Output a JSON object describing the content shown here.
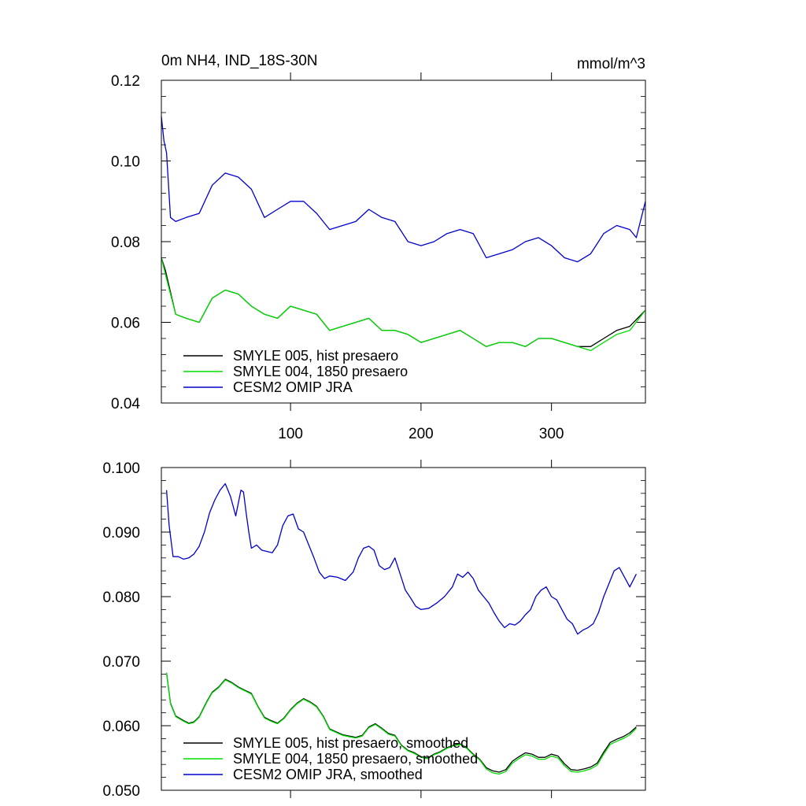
{
  "chart_data": [
    {
      "type": "line",
      "title": "0m NH4, IND_18S-30N",
      "units": "mmol/m^3",
      "xlim": [
        1,
        372
      ],
      "ylim": [
        0.04,
        0.12
      ],
      "yticks": [
        {
          "value": 0.04,
          "label": "0.04"
        },
        {
          "value": 0.06,
          "label": "0.06"
        },
        {
          "value": 0.08,
          "label": "0.08"
        },
        {
          "value": 0.1,
          "label": "0.10"
        },
        {
          "value": 0.12,
          "label": "0.12"
        }
      ],
      "xticks": [
        {
          "value": 100,
          "label": "100"
        },
        {
          "value": 200,
          "label": "200"
        },
        {
          "value": 300,
          "label": "300"
        }
      ],
      "legend_position": "bottom-left",
      "series": [
        {
          "name": "SMYLE 005, hist presaero",
          "color": "#000000",
          "x": [
            1,
            4,
            12,
            20,
            30,
            40,
            50,
            60,
            70,
            80,
            90,
            100,
            110,
            120,
            130,
            140,
            150,
            160,
            170,
            180,
            190,
            200,
            210,
            220,
            230,
            240,
            250,
            260,
            270,
            280,
            290,
            300,
            310,
            320,
            330,
            340,
            350,
            360,
            372
          ],
          "y": [
            0.076,
            0.073,
            0.062,
            0.061,
            0.06,
            0.066,
            0.068,
            0.067,
            0.064,
            0.062,
            0.061,
            0.064,
            0.063,
            0.062,
            0.058,
            0.059,
            0.06,
            0.061,
            0.058,
            0.058,
            0.057,
            0.055,
            0.056,
            0.057,
            0.058,
            0.056,
            0.054,
            0.055,
            0.055,
            0.054,
            0.056,
            0.056,
            0.055,
            0.054,
            0.054,
            0.056,
            0.058,
            0.059,
            0.063
          ]
        },
        {
          "name": "SMYLE 004, 1850 presaero",
          "color": "#00dd00",
          "x": [
            1,
            4,
            12,
            20,
            30,
            40,
            50,
            60,
            70,
            80,
            90,
            100,
            110,
            120,
            130,
            140,
            150,
            160,
            170,
            180,
            190,
            200,
            210,
            220,
            230,
            240,
            250,
            260,
            270,
            280,
            290,
            300,
            310,
            320,
            330,
            340,
            350,
            360,
            372
          ],
          "y": [
            0.076,
            0.072,
            0.062,
            0.061,
            0.06,
            0.066,
            0.068,
            0.067,
            0.064,
            0.062,
            0.061,
            0.064,
            0.063,
            0.062,
            0.058,
            0.059,
            0.06,
            0.061,
            0.058,
            0.058,
            0.057,
            0.055,
            0.056,
            0.057,
            0.058,
            0.056,
            0.054,
            0.055,
            0.055,
            0.054,
            0.056,
            0.056,
            0.055,
            0.054,
            0.053,
            0.055,
            0.057,
            0.058,
            0.063
          ]
        },
        {
          "name": "CESM2 OMIP JRA",
          "color": "#0000cc",
          "x": [
            1,
            3,
            5,
            8,
            12,
            20,
            30,
            40,
            50,
            60,
            70,
            80,
            90,
            100,
            110,
            120,
            130,
            140,
            150,
            160,
            170,
            180,
            190,
            200,
            210,
            220,
            230,
            240,
            250,
            260,
            270,
            280,
            290,
            300,
            310,
            320,
            330,
            340,
            350,
            360,
            365,
            372
          ],
          "y": [
            0.111,
            0.105,
            0.102,
            0.086,
            0.085,
            0.086,
            0.087,
            0.094,
            0.097,
            0.096,
            0.093,
            0.086,
            0.088,
            0.09,
            0.09,
            0.087,
            0.083,
            0.084,
            0.085,
            0.088,
            0.086,
            0.085,
            0.08,
            0.079,
            0.08,
            0.082,
            0.083,
            0.082,
            0.076,
            0.077,
            0.078,
            0.08,
            0.081,
            0.079,
            0.076,
            0.075,
            0.077,
            0.082,
            0.084,
            0.083,
            0.081,
            0.09
          ]
        }
      ]
    },
    {
      "type": "line",
      "title": "",
      "xlim": [
        1,
        372
      ],
      "ylim": [
        0.05,
        0.1
      ],
      "yticks": [
        {
          "value": 0.05,
          "label": "0.050"
        },
        {
          "value": 0.06,
          "label": "0.060"
        },
        {
          "value": 0.07,
          "label": "0.070"
        },
        {
          "value": 0.08,
          "label": "0.080"
        },
        {
          "value": 0.09,
          "label": "0.090"
        },
        {
          "value": 0.1,
          "label": "0.100"
        }
      ],
      "xticks": [
        {
          "value": 100,
          "label": ""
        },
        {
          "value": 200,
          "label": ""
        },
        {
          "value": 300,
          "label": ""
        }
      ],
      "legend_position": "bottom-left",
      "series": [
        {
          "name": "SMYLE 005, hist presaero, smoothed",
          "color": "#000000",
          "x": [
            5,
            8,
            12,
            18,
            22,
            26,
            30,
            36,
            40,
            45,
            50,
            55,
            60,
            65,
            70,
            75,
            80,
            85,
            90,
            95,
            100,
            105,
            110,
            115,
            120,
            125,
            130,
            140,
            150,
            155,
            160,
            165,
            170,
            175,
            180,
            185,
            190,
            195,
            200,
            205,
            210,
            215,
            220,
            225,
            230,
            235,
            240,
            245,
            250,
            255,
            260,
            265,
            270,
            275,
            280,
            285,
            290,
            295,
            300,
            305,
            310,
            315,
            320,
            325,
            330,
            335,
            340,
            345,
            350,
            355,
            360,
            365
          ],
          "y": [
            0.0682,
            0.0635,
            0.0615,
            0.0608,
            0.0604,
            0.0606,
            0.0614,
            0.0638,
            0.0652,
            0.066,
            0.0672,
            0.0667,
            0.066,
            0.0655,
            0.065,
            0.063,
            0.0613,
            0.0608,
            0.0604,
            0.0612,
            0.0625,
            0.0635,
            0.0642,
            0.0637,
            0.063,
            0.0615,
            0.0595,
            0.0586,
            0.0582,
            0.0585,
            0.0598,
            0.0603,
            0.0596,
            0.0588,
            0.0585,
            0.057,
            0.0562,
            0.0558,
            0.0552,
            0.055,
            0.0556,
            0.056,
            0.0566,
            0.057,
            0.0572,
            0.0566,
            0.0556,
            0.0548,
            0.0535,
            0.053,
            0.0528,
            0.0532,
            0.0545,
            0.0552,
            0.0558,
            0.0556,
            0.0551,
            0.0551,
            0.0556,
            0.0553,
            0.0541,
            0.0532,
            0.0531,
            0.0533,
            0.0536,
            0.0542,
            0.0559,
            0.0574,
            0.0579,
            0.0583,
            0.0589,
            0.0598
          ]
        },
        {
          "name": "SMYLE 004, 1850 presaero, smoothed",
          "color": "#00dd00",
          "x": [
            5,
            8,
            12,
            18,
            22,
            26,
            30,
            36,
            40,
            45,
            50,
            55,
            60,
            65,
            70,
            75,
            80,
            85,
            90,
            95,
            100,
            105,
            110,
            115,
            120,
            125,
            130,
            140,
            150,
            155,
            160,
            165,
            170,
            175,
            180,
            185,
            190,
            195,
            200,
            205,
            210,
            215,
            220,
            225,
            230,
            235,
            240,
            245,
            250,
            255,
            260,
            265,
            270,
            275,
            280,
            285,
            290,
            295,
            300,
            305,
            310,
            315,
            320,
            325,
            330,
            335,
            340,
            345,
            350,
            355,
            360,
            365
          ],
          "y": [
            0.0682,
            0.0634,
            0.0614,
            0.0607,
            0.0603,
            0.0605,
            0.0613,
            0.0637,
            0.0651,
            0.0659,
            0.0671,
            0.0666,
            0.0659,
            0.0654,
            0.0649,
            0.0629,
            0.0612,
            0.0607,
            0.0603,
            0.0611,
            0.0624,
            0.0634,
            0.0641,
            0.0636,
            0.0629,
            0.0614,
            0.0594,
            0.0585,
            0.0581,
            0.0584,
            0.0597,
            0.0602,
            0.0595,
            0.0587,
            0.0584,
            0.0569,
            0.0561,
            0.0557,
            0.0551,
            0.0549,
            0.0555,
            0.0559,
            0.0565,
            0.0569,
            0.0571,
            0.0565,
            0.0555,
            0.0547,
            0.0533,
            0.0527,
            0.0525,
            0.0529,
            0.0542,
            0.0549,
            0.0555,
            0.0553,
            0.0548,
            0.0548,
            0.0553,
            0.055,
            0.0538,
            0.0529,
            0.0528,
            0.053,
            0.0533,
            0.0539,
            0.0556,
            0.0571,
            0.0576,
            0.058,
            0.0586,
            0.0596
          ]
        },
        {
          "name": "CESM2 OMIP JRA, smoothed",
          "color": "#0000cc",
          "x": [
            5,
            7,
            10,
            14,
            18,
            22,
            26,
            30,
            34,
            38,
            42,
            46,
            50,
            54,
            56,
            58,
            60,
            62,
            64,
            66,
            68,
            70,
            74,
            78,
            82,
            86,
            90,
            94,
            98,
            102,
            106,
            110,
            114,
            118,
            122,
            126,
            130,
            136,
            142,
            148,
            152,
            156,
            160,
            164,
            168,
            172,
            176,
            180,
            184,
            188,
            192,
            196,
            200,
            206,
            212,
            218,
            224,
            228,
            232,
            236,
            240,
            244,
            248,
            252,
            256,
            260,
            264,
            268,
            272,
            276,
            280,
            284,
            288,
            292,
            296,
            300,
            304,
            308,
            312,
            316,
            320,
            324,
            328,
            332,
            336,
            340,
            344,
            348,
            352,
            356,
            360,
            365
          ],
          "y": [
            0.0965,
            0.091,
            0.0862,
            0.0862,
            0.0858,
            0.086,
            0.0866,
            0.0878,
            0.09,
            0.093,
            0.095,
            0.0965,
            0.0975,
            0.0955,
            0.094,
            0.0925,
            0.0945,
            0.0965,
            0.0962,
            0.093,
            0.09,
            0.0875,
            0.088,
            0.0872,
            0.087,
            0.0868,
            0.088,
            0.091,
            0.0925,
            0.0928,
            0.0905,
            0.09,
            0.088,
            0.086,
            0.0838,
            0.0828,
            0.0832,
            0.083,
            0.0825,
            0.0838,
            0.086,
            0.0875,
            0.0878,
            0.0872,
            0.0848,
            0.0842,
            0.0845,
            0.086,
            0.0835,
            0.081,
            0.0798,
            0.0785,
            0.078,
            0.0782,
            0.079,
            0.08,
            0.0815,
            0.0835,
            0.083,
            0.0838,
            0.0828,
            0.081,
            0.08,
            0.079,
            0.0775,
            0.0762,
            0.0752,
            0.0758,
            0.0756,
            0.0762,
            0.0772,
            0.078,
            0.08,
            0.081,
            0.0815,
            0.08,
            0.0795,
            0.078,
            0.0765,
            0.0758,
            0.0742,
            0.0748,
            0.0752,
            0.0758,
            0.0775,
            0.08,
            0.082,
            0.084,
            0.0845,
            0.083,
            0.0815,
            0.0835
          ]
        }
      ]
    }
  ]
}
